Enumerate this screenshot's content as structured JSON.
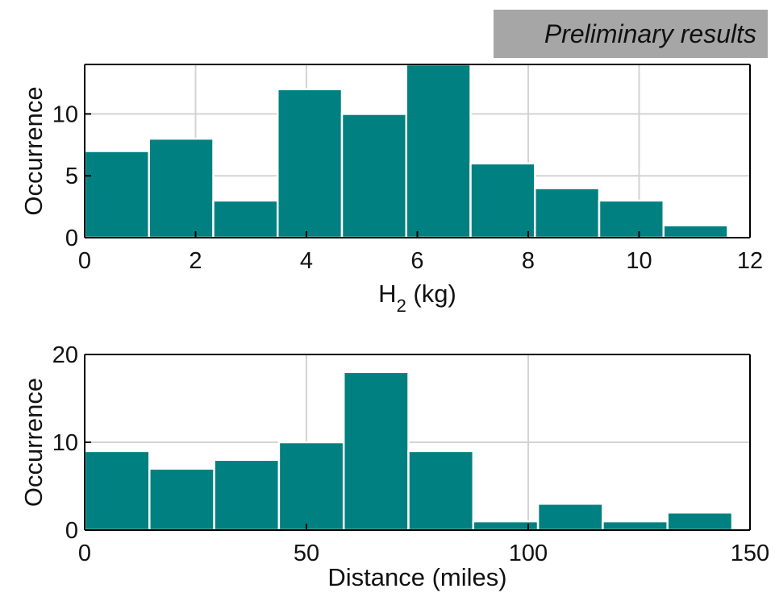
{
  "badge": {
    "text": "Preliminary results"
  },
  "colors": {
    "bar_fill": "#008080",
    "bar_edge": "#ffffff",
    "grid": "#d3d3d3",
    "axis": "#000000"
  },
  "chart_data": [
    {
      "type": "bar",
      "histogram": true,
      "xlabel": "H",
      "xlabel_subscript": "2",
      "xlabel_suffix": " (kg)",
      "ylabel": "Occurrence",
      "xlim": [
        0,
        12
      ],
      "ylim": [
        0,
        14
      ],
      "xticks": [
        0,
        2,
        4,
        6,
        8,
        10,
        12
      ],
      "yticks": [
        0,
        5,
        10
      ],
      "grid": true,
      "bin_edges": [
        0,
        1.16,
        2.32,
        3.48,
        4.64,
        5.8,
        6.96,
        8.12,
        9.28,
        10.44,
        11.6
      ],
      "values": [
        7,
        8,
        3,
        12,
        10,
        14,
        6,
        4,
        3,
        1
      ]
    },
    {
      "type": "bar",
      "histogram": true,
      "xlabel": "Distance (miles)",
      "ylabel": "Occurrence",
      "xlim": [
        0,
        150
      ],
      "ylim": [
        0,
        20
      ],
      "xticks": [
        0,
        50,
        100,
        150
      ],
      "yticks": [
        0,
        10,
        20
      ],
      "grid": true,
      "bin_edges": [
        0,
        14.6,
        29.2,
        43.8,
        58.4,
        73,
        87.6,
        102.2,
        116.8,
        131.4,
        146
      ],
      "values": [
        9,
        7,
        8,
        10,
        18,
        9,
        1,
        3,
        1,
        2
      ]
    }
  ]
}
